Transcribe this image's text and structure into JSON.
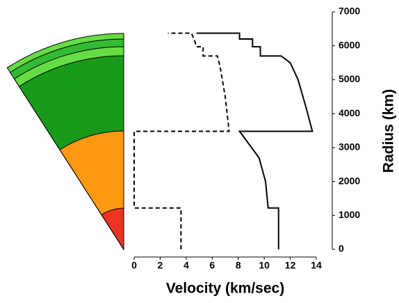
{
  "chart_data": {
    "type": "line",
    "xlabel": "Velocity (km/sec)",
    "ylabel": "Radius (km)",
    "xlim": [
      0,
      14
    ],
    "xticks": [
      0,
      2,
      4,
      6,
      8,
      10,
      12,
      14
    ],
    "ylim": [
      0,
      7000
    ],
    "yticks": [
      0,
      1000,
      2000,
      3000,
      4000,
      5000,
      6000,
      7000
    ],
    "yaxis_side": "right",
    "grid": false,
    "series": [
      {
        "color": "#000000",
        "style": "solid",
        "x": [
          11.1,
          11.1,
          10.3,
          10.1,
          9.6,
          8.1,
          13.7,
          13.2,
          12.6,
          12.0,
          11.3,
          9.7,
          9.7,
          9.1,
          9.1,
          8.1,
          8.1,
          4.8
        ],
        "y": [
          0,
          1220,
          1220,
          2000,
          2700,
          3480,
          3480,
          4200,
          5000,
          5500,
          5700,
          5700,
          5970,
          5970,
          6200,
          6200,
          6371,
          6371
        ]
      },
      {
        "color": "#000000",
        "style": "dashed",
        "x": [
          3.6,
          3.6,
          0,
          0,
          7.3,
          7.0,
          6.6,
          6.4,
          5.3,
          5.3,
          4.8,
          4.6,
          4.4,
          2.6
        ],
        "y": [
          0,
          1220,
          1220,
          3480,
          3480,
          4500,
          5400,
          5700,
          5700,
          5970,
          5970,
          6200,
          6371,
          6371
        ]
      }
    ]
  }
}
